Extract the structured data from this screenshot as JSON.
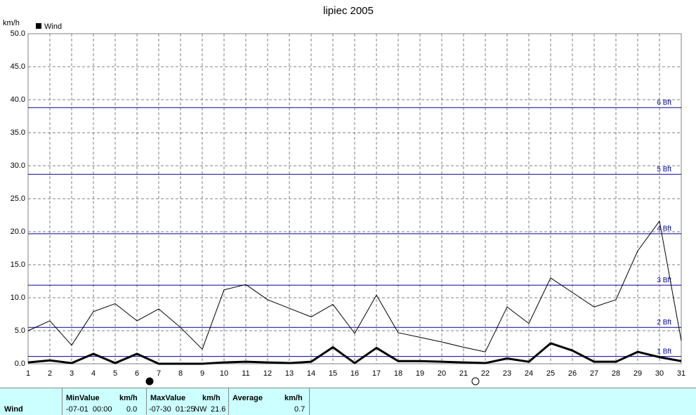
{
  "chart_data": {
    "type": "line",
    "title": "lipiec 2005",
    "y_unit": "km/h",
    "x": [
      1,
      2,
      3,
      4,
      5,
      6,
      7,
      8,
      9,
      10,
      11,
      12,
      13,
      14,
      15,
      16,
      17,
      18,
      19,
      20,
      21,
      22,
      23,
      24,
      25,
      26,
      27,
      28,
      29,
      30,
      31
    ],
    "series": [
      {
        "name": "Wind",
        "color": "#000000",
        "width": 3,
        "values": [
          0.2,
          0.5,
          0.1,
          1.5,
          0.1,
          1.5,
          0.0,
          0.0,
          0.0,
          0.2,
          0.3,
          0.2,
          0.1,
          0.3,
          2.5,
          0.1,
          2.4,
          0.4,
          0.4,
          0.3,
          0.2,
          0.1,
          0.8,
          0.3,
          3.1,
          2.0,
          0.3,
          0.3,
          1.8,
          1.0,
          0.4
        ]
      },
      {
        "color": "#000000",
        "width": 1,
        "values": [
          5.0,
          6.5,
          2.8,
          7.9,
          9.1,
          6.5,
          8.3,
          5.5,
          2.2,
          11.2,
          12.0,
          9.7,
          8.4,
          7.1,
          9.0,
          4.6,
          10.4,
          4.7,
          4.0,
          3.3,
          2.5,
          1.8,
          8.6,
          6.1,
          13.0,
          10.8,
          8.6,
          9.7,
          17.1,
          21.6,
          3.5
        ]
      }
    ],
    "xlim": [
      1,
      31
    ],
    "xticks": [
      1,
      2,
      3,
      4,
      5,
      6,
      7,
      8,
      9,
      10,
      11,
      12,
      13,
      14,
      15,
      16,
      17,
      18,
      19,
      20,
      21,
      22,
      23,
      24,
      25,
      26,
      27,
      28,
      29,
      30,
      31
    ],
    "ylim": [
      0,
      50
    ],
    "yticks": [
      {
        "value": 0,
        "label": "0.0"
      },
      {
        "value": 5,
        "label": "5.0"
      },
      {
        "value": 10,
        "label": "10.0"
      },
      {
        "value": 15,
        "label": "15.0"
      },
      {
        "value": 20,
        "label": "20.0"
      },
      {
        "value": 25,
        "label": "25.0"
      },
      {
        "value": 30,
        "label": "30.0"
      },
      {
        "value": 35,
        "label": "35.0"
      },
      {
        "value": 40,
        "label": "40.0"
      },
      {
        "value": 45,
        "label": "45.0"
      },
      {
        "value": 50,
        "label": "50.0"
      }
    ],
    "grid": true,
    "reference_lines": {
      "color": "#0000a0",
      "lines": [
        {
          "value": 1.1,
          "label": "1 Bft"
        },
        {
          "value": 5.5,
          "label": "2 Bft"
        },
        {
          "value": 11.9,
          "label": "3 Bft"
        },
        {
          "value": 19.7,
          "label": "4 Bft"
        },
        {
          "value": 28.7,
          "label": "5 Bft"
        },
        {
          "value": 38.8,
          "label": "6 Bft"
        }
      ]
    }
  },
  "summary": {
    "row": "Wind",
    "min": {
      "header": "MinValue",
      "unit": "km/h",
      "time": "-07-01  00:00",
      "value": "0.0"
    },
    "max": {
      "header": "MaxValue",
      "unit": "km/h",
      "time": "-07-30  01:25",
      "dir": "NW",
      "value": "21.6"
    },
    "avg": {
      "header": "Average",
      "unit": "km/h",
      "value": "0.7"
    }
  }
}
